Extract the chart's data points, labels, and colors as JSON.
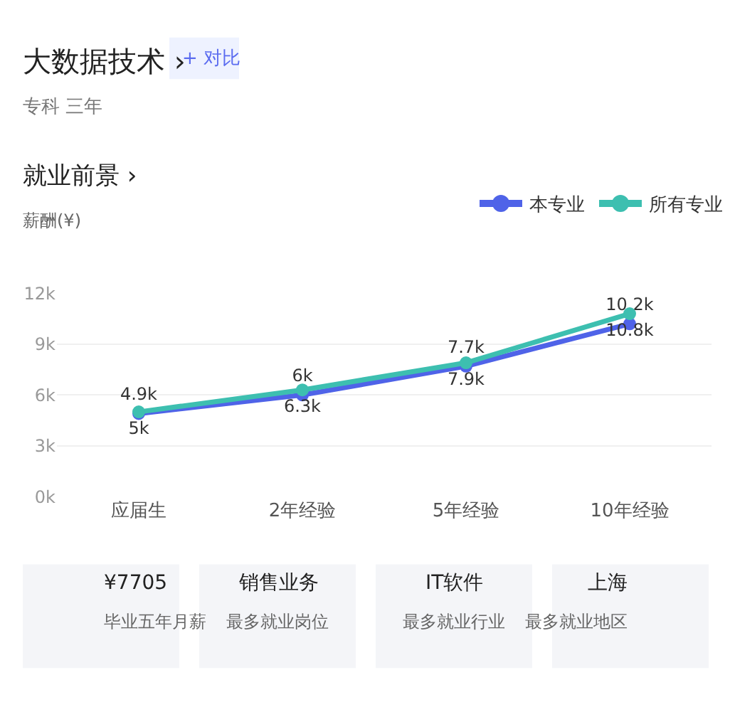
{
  "chart_data": [
    {
      "type": "line",
      "title": "就业前景 ›",
      "ylabel": "薪酬(¥)",
      "annotations": [
        "大数据技术 ›",
        "+ 对比",
        "专科 三年"
      ],
      "categories": [
        "应届生",
        "2年经验",
        "5年经验",
        "10年经验"
      ],
      "series": [
        {
          "name": "本专业",
          "color": "#4f63e8",
          "values": [
            4.9,
            6,
            7.7,
            10.2
          ],
          "value_labels": [
            "4.9k",
            "6k",
            "7.7k",
            "10.2k"
          ]
        },
        {
          "name": "所有专业",
          "color": "#3dbfb0",
          "values": [
            5,
            6.3,
            7.9,
            10.8
          ],
          "value_labels": [
            "5k",
            "6.3k",
            "7.9k",
            "10.8k"
          ]
        }
      ],
      "ylim": [
        0,
        12
      ],
      "yticks": [
        {
          "value": 0,
          "label": "0k"
        },
        {
          "value": 3,
          "label": "3k"
        },
        {
          "value": 6,
          "label": "6k"
        },
        {
          "value": 9,
          "label": "9k"
        },
        {
          "value": 12,
          "label": "12k"
        }
      ],
      "grid": "y",
      "legend": "top right",
      "marker": "circle",
      "line_style": "solid"
    },
    {
      "type": "other",
      "annotations": [
        "¥7705",
        "毕业五年月薪",
        "销售业务",
        "最多就业岗位",
        "IT软件",
        "最多就业行业",
        "上海",
        "最多就业地区"
      ]
    }
  ]
}
